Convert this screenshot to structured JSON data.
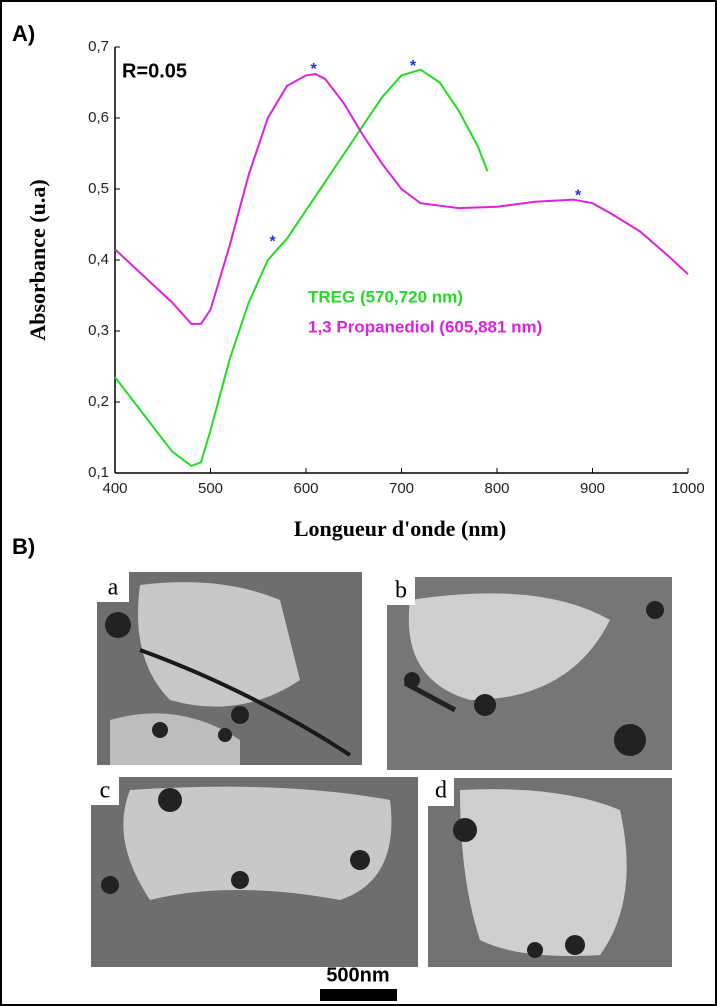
{
  "chart_data": {
    "type": "line",
    "xlabel": "Longueur d'onde (nm)",
    "ylabel": "Absorbance (u.a)",
    "xlim": [
      400,
      1000
    ],
    "xticks": [
      400,
      500,
      600,
      700,
      800,
      900,
      1000
    ],
    "ylim": [
      0.1,
      0.7
    ],
    "yticks": [
      {
        "value": 0.1,
        "label": "0,1"
      },
      {
        "value": 0.2,
        "label": "0,2"
      },
      {
        "value": 0.3,
        "label": "0,3"
      },
      {
        "value": 0.4,
        "label": "0,4"
      },
      {
        "value": 0.5,
        "label": "0,5"
      },
      {
        "value": 0.6,
        "label": "0,6"
      },
      {
        "value": 0.7,
        "label": "0,7"
      }
    ],
    "grid": false,
    "series": [
      {
        "name": "TREG (570,720 nm)",
        "color": "#22dd22",
        "x": [
          400,
          420,
          440,
          460,
          480,
          490,
          500,
          520,
          540,
          560,
          580,
          600,
          620,
          640,
          660,
          680,
          700,
          720,
          740,
          760,
          780,
          790
        ],
        "values": [
          0.235,
          0.2,
          0.165,
          0.13,
          0.11,
          0.115,
          0.16,
          0.26,
          0.34,
          0.4,
          0.43,
          0.47,
          0.51,
          0.55,
          0.59,
          0.63,
          0.66,
          0.668,
          0.65,
          0.61,
          0.56,
          0.525
        ]
      },
      {
        "name": "1,3 Propanediol (605,881 nm)",
        "color": "#dd22dd",
        "x": [
          400,
          420,
          440,
          460,
          480,
          490,
          500,
          520,
          540,
          560,
          580,
          600,
          610,
          620,
          640,
          660,
          680,
          700,
          720,
          760,
          800,
          840,
          880,
          900,
          920,
          950,
          980,
          1000
        ],
        "values": [
          0.415,
          0.39,
          0.365,
          0.34,
          0.31,
          0.31,
          0.33,
          0.42,
          0.52,
          0.6,
          0.645,
          0.66,
          0.662,
          0.655,
          0.62,
          0.575,
          0.535,
          0.5,
          0.48,
          0.473,
          0.475,
          0.482,
          0.485,
          0.48,
          0.465,
          0.44,
          0.405,
          0.38
        ]
      }
    ],
    "annotations": [
      {
        "text": "R=0.05"
      },
      {
        "text": "*",
        "x": 565,
        "y": 0.425
      },
      {
        "text": "*",
        "x": 712,
        "y": 0.672
      },
      {
        "text": "*",
        "x": 608,
        "y": 0.668
      },
      {
        "text": "*",
        "x": 885,
        "y": 0.49
      }
    ]
  },
  "panels": [
    "A)",
    "B)"
  ],
  "micrographs": {
    "labels": [
      "a",
      "b",
      "c",
      "d"
    ],
    "scale_bar": "500nm"
  }
}
